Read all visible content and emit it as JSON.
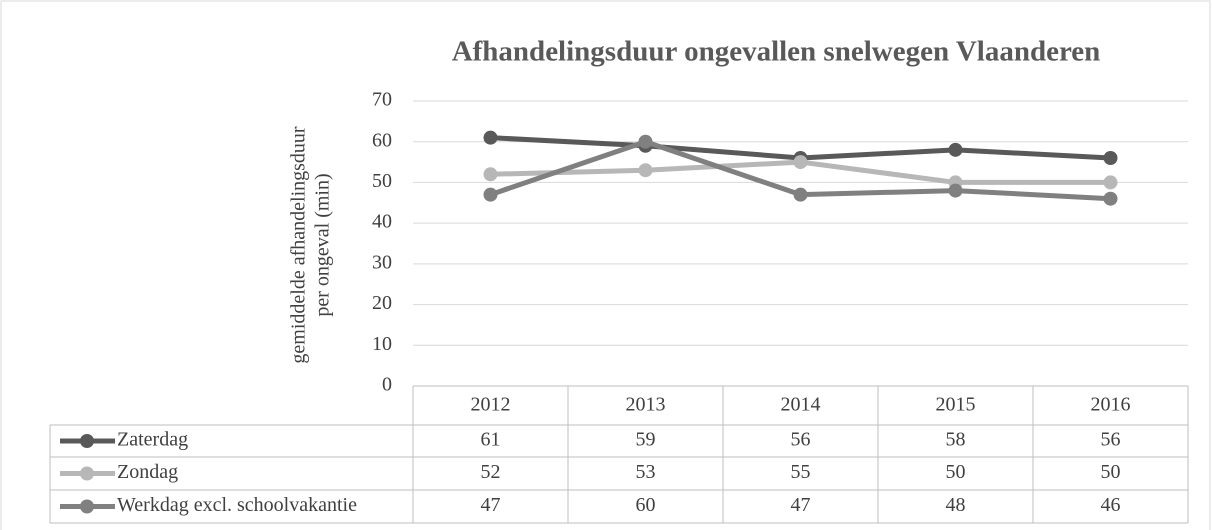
{
  "chart_data": {
    "type": "line",
    "title": "Afhandelingsduur ongevallen snelwegen Vlaanderen",
    "y_label": [
      "gemiddelde afhandelingsduur",
      "per ongeval (min)"
    ],
    "categories": [
      "2012",
      "2013",
      "2014",
      "2015",
      "2016"
    ],
    "series": [
      {
        "name": "Zaterdag",
        "color": "#595959",
        "values": [
          61,
          59,
          56,
          58,
          56
        ]
      },
      {
        "name": "Zondag",
        "color": "#b7b7b7",
        "values": [
          52,
          53,
          55,
          50,
          50
        ]
      },
      {
        "name": "Werkdag excl. schoolvakantie",
        "color": "#808080",
        "values": [
          47,
          60,
          47,
          48,
          46
        ]
      }
    ],
    "ylim": [
      0,
      70
    ],
    "yticks": [
      0,
      10,
      20,
      30,
      40,
      50,
      60,
      70
    ],
    "grid": true
  }
}
